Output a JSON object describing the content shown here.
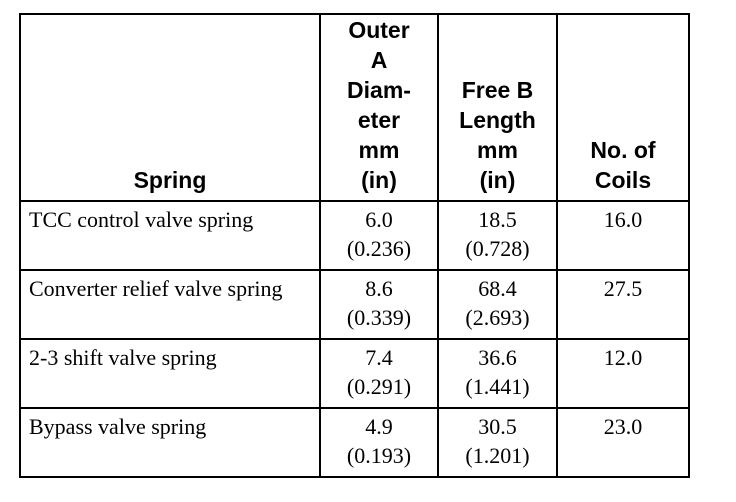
{
  "table": {
    "headers": [
      {
        "key": "spring",
        "lines": [
          "Spring"
        ]
      },
      {
        "key": "outer_diameter",
        "lines": [
          "Outer",
          "A",
          "Diam-",
          "eter",
          "mm",
          "(in)"
        ]
      },
      {
        "key": "free_length",
        "lines": [
          "Free B",
          "Length",
          "mm",
          "(in)"
        ]
      },
      {
        "key": "coils",
        "lines": [
          "No. of",
          "Coils"
        ]
      }
    ],
    "rows": [
      {
        "spring": "TCC control valve spring",
        "od_mm": "6.0",
        "od_in": "(0.236)",
        "len_mm": "18.5",
        "len_in": "(0.728)",
        "coils": "16.0"
      },
      {
        "spring": "Converter relief valve spring",
        "od_mm": "8.6",
        "od_in": "(0.339)",
        "len_mm": "68.4",
        "len_in": "(2.693)",
        "coils": "27.5"
      },
      {
        "spring": "2-3 shift valve spring",
        "od_mm": "7.4",
        "od_in": "(0.291)",
        "len_mm": "36.6",
        "len_in": "(1.441)",
        "coils": "12.0"
      },
      {
        "spring": "Bypass valve spring",
        "od_mm": "4.9",
        "od_in": "(0.193)",
        "len_mm": "30.5",
        "len_in": "(1.201)",
        "coils": "23.0"
      }
    ]
  }
}
